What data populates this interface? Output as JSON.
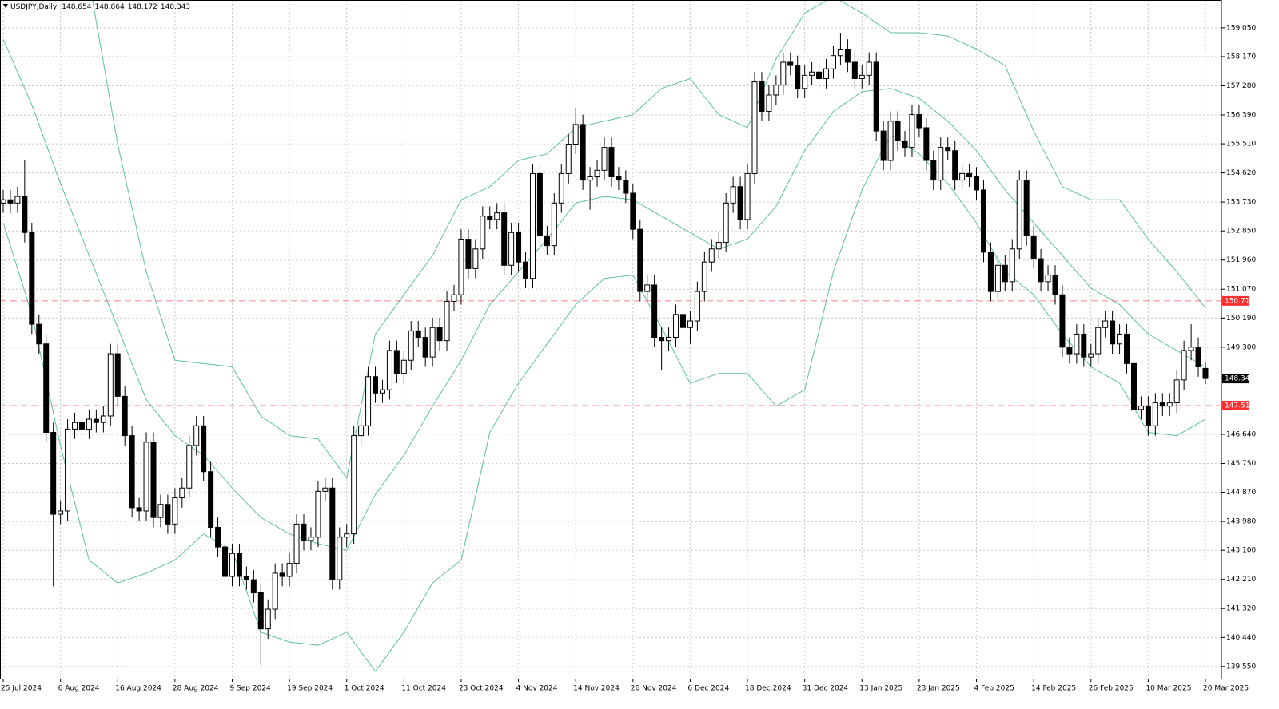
{
  "chart_data": {
    "type": "candlestick",
    "title": "USDJPY,Daily",
    "categories": [
      "25 Jul 2024",
      null,
      null,
      null,
      null,
      null,
      null,
      null,
      "6 Aug 2024",
      null,
      null,
      null,
      null,
      null,
      null,
      null,
      "16 Aug 2024",
      null,
      null,
      null,
      null,
      null,
      null,
      null,
      "28 Aug 2024",
      null,
      null,
      null,
      null,
      null,
      null,
      null,
      "9 Sep 2024",
      null,
      null,
      null,
      null,
      null,
      null,
      null,
      "19 Sep 2024",
      null,
      null,
      null,
      null,
      null,
      null,
      null,
      "1 Oct 2024",
      null,
      null,
      null,
      null,
      null,
      null,
      null,
      "11 Oct 2024",
      null,
      null,
      null,
      null,
      null,
      null,
      null,
      "23 Oct 2024",
      null,
      null,
      null,
      null,
      null,
      null,
      null,
      "4 Nov 2024",
      null,
      null,
      null,
      null,
      null,
      null,
      null,
      "14 Nov 2024",
      null,
      null,
      null,
      null,
      null,
      null,
      null,
      "26 Nov 2024",
      null,
      null,
      null,
      null,
      null,
      null,
      null,
      "6 Dec 2024",
      null,
      null,
      null,
      null,
      null,
      null,
      null,
      "18 Dec 2024",
      null,
      null,
      null,
      null,
      null,
      null,
      null,
      "31 Dec 2024",
      null,
      null,
      null,
      null,
      null,
      null,
      null,
      "13 Jan 2025",
      null,
      null,
      null,
      null,
      null,
      null,
      null,
      "23 Jan 2025",
      null,
      null,
      null,
      null,
      null,
      null,
      null,
      "4 Feb 2025",
      null,
      null,
      null,
      null,
      null,
      null,
      null,
      "14 Feb 2025",
      null,
      null,
      null,
      null,
      null,
      null,
      null,
      "26 Feb 2025",
      null,
      null,
      null,
      null,
      null,
      null,
      null,
      "10 Mar 2025",
      null,
      null,
      null,
      null,
      null,
      null,
      null,
      "20 Mar 2025"
    ],
    "open": [
      153.7,
      153.8,
      153.7,
      153.9,
      152.8,
      150.0,
      149.4,
      146.7,
      144.2,
      144.3,
      146.8,
      147.0,
      146.8,
      147.1,
      147.0,
      147.2,
      149.1,
      147.8,
      146.6,
      144.4,
      144.3,
      146.4,
      144.1,
      144.5,
      143.9,
      144.7,
      145.0,
      146.3,
      146.9,
      145.5,
      143.8,
      143.2,
      142.3,
      143.0,
      142.3,
      142.2,
      141.8,
      140.7,
      141.3,
      142.4,
      142.3,
      142.7,
      143.9,
      143.4,
      143.5,
      144.9,
      145.0,
      142.2,
      143.5,
      143.6,
      146.6,
      146.9,
      148.4,
      147.9,
      148.0,
      149.2,
      148.5,
      148.9,
      149.8,
      149.6,
      149.0,
      149.9,
      149.5,
      150.7,
      150.9,
      152.6,
      151.7,
      152.3,
      153.3,
      153.2,
      153.4,
      151.8,
      152.8,
      151.9,
      151.4,
      154.6,
      152.7,
      152.4,
      153.7,
      154.6,
      155.5,
      156.1,
      154.4,
      154.5,
      154.7,
      155.4,
      154.5,
      154.4,
      154.0,
      152.9,
      151.0,
      151.2,
      149.6,
      149.5,
      149.6,
      150.3,
      149.9,
      150.1,
      151.0,
      151.9,
      152.3,
      152.5,
      153.7,
      154.2,
      153.2,
      154.6,
      157.4,
      156.5,
      157.0,
      157.3,
      158.0,
      157.9,
      157.2,
      157.6,
      157.7,
      157.5,
      157.8,
      158.2,
      158.4,
      158.0,
      157.5,
      157.6,
      158.0,
      155.9,
      155.0,
      156.2,
      155.6,
      155.4,
      156.4,
      156.0,
      155.0,
      154.4,
      155.4,
      155.3,
      154.4,
      154.6,
      154.5,
      154.1,
      152.2,
      151.0,
      151.8,
      151.3,
      152.3,
      154.4,
      152.7,
      152.0,
      151.3,
      151.5,
      150.9,
      149.3,
      149.1,
      149.7,
      149.0,
      149.1,
      149.9,
      150.1,
      149.4,
      149.7,
      148.8,
      147.4,
      147.5,
      146.9,
      147.6,
      147.5,
      147.6,
      148.3,
      149.2,
      149.3,
      148.654
    ],
    "high": [
      154.1,
      154.1,
      154.2,
      155.0,
      153.1,
      150.3,
      149.7,
      147.0,
      144.6,
      147.1,
      147.3,
      147.3,
      147.4,
      147.4,
      147.5,
      149.4,
      149.4,
      148.1,
      146.9,
      144.7,
      146.7,
      146.7,
      144.8,
      144.8,
      145.0,
      145.3,
      146.6,
      147.2,
      147.2,
      145.8,
      144.1,
      143.5,
      143.3,
      143.3,
      142.6,
      142.5,
      142.1,
      141.6,
      142.7,
      142.7,
      143.0,
      144.2,
      144.2,
      143.8,
      145.2,
      145.3,
      145.3,
      143.8,
      143.9,
      146.9,
      147.2,
      148.7,
      148.7,
      148.3,
      149.5,
      149.5,
      149.2,
      150.1,
      150.1,
      149.9,
      150.2,
      150.2,
      151.0,
      151.2,
      152.9,
      152.9,
      152.6,
      153.6,
      153.6,
      153.7,
      153.7,
      153.1,
      153.1,
      152.2,
      154.9,
      154.9,
      153.0,
      154.0,
      154.9,
      155.8,
      156.6,
      156.4,
      154.8,
      155.0,
      155.7,
      155.7,
      154.8,
      154.7,
      154.3,
      153.2,
      151.5,
      151.5,
      149.9,
      149.9,
      150.6,
      150.6,
      150.4,
      151.3,
      152.2,
      152.6,
      152.8,
      154.0,
      154.5,
      154.5,
      154.9,
      157.7,
      157.7,
      157.3,
      157.6,
      158.3,
      158.3,
      158.2,
      157.9,
      158.0,
      158.0,
      158.1,
      158.5,
      158.9,
      158.7,
      158.3,
      157.9,
      158.3,
      158.3,
      156.2,
      156.5,
      156.5,
      155.9,
      156.7,
      156.7,
      156.3,
      155.3,
      155.7,
      155.7,
      155.6,
      154.9,
      154.9,
      154.8,
      154.4,
      152.5,
      152.1,
      152.1,
      152.6,
      154.7,
      154.7,
      153.0,
      152.3,
      151.8,
      151.8,
      151.2,
      149.6,
      150.0,
      150.0,
      149.4,
      150.2,
      150.4,
      150.4,
      150.0,
      150.0,
      149.1,
      147.8,
      147.8,
      147.9,
      147.9,
      147.9,
      148.6,
      149.5,
      150.0,
      149.6,
      148.864
    ],
    "low": [
      153.4,
      153.4,
      153.4,
      152.5,
      149.7,
      149.1,
      146.4,
      142.0,
      143.9,
      144.0,
      146.5,
      146.5,
      146.5,
      146.7,
      146.7,
      146.9,
      147.5,
      146.3,
      144.1,
      144.0,
      144.0,
      143.8,
      143.8,
      143.6,
      143.6,
      144.4,
      144.7,
      146.0,
      145.2,
      143.5,
      142.9,
      142.0,
      142.0,
      142.0,
      141.9,
      141.5,
      139.6,
      140.4,
      141.0,
      142.0,
      142.0,
      142.4,
      143.1,
      143.1,
      143.2,
      144.6,
      141.9,
      141.9,
      143.2,
      143.3,
      146.3,
      146.6,
      147.6,
      147.6,
      147.7,
      148.2,
      148.2,
      148.6,
      149.3,
      148.7,
      148.7,
      149.2,
      149.2,
      150.4,
      150.6,
      151.4,
      151.4,
      152.0,
      152.9,
      152.9,
      151.5,
      151.5,
      151.6,
      151.1,
      151.1,
      152.4,
      152.1,
      152.1,
      153.4,
      154.3,
      155.2,
      154.1,
      153.5,
      154.2,
      154.4,
      154.2,
      154.1,
      153.7,
      152.6,
      150.7,
      150.7,
      149.3,
      148.6,
      149.2,
      149.3,
      149.6,
      149.4,
      149.8,
      150.7,
      151.6,
      152.0,
      152.2,
      153.4,
      152.9,
      152.9,
      154.3,
      156.2,
      156.2,
      156.7,
      157.0,
      157.6,
      156.9,
      156.9,
      157.3,
      157.2,
      157.2,
      157.5,
      157.9,
      157.7,
      157.2,
      157.2,
      157.3,
      155.6,
      154.7,
      154.7,
      155.3,
      155.1,
      155.1,
      155.7,
      154.7,
      154.1,
      154.1,
      155.0,
      154.1,
      154.1,
      154.2,
      153.8,
      151.9,
      150.7,
      150.7,
      151.0,
      151.0,
      152.0,
      152.4,
      151.7,
      151.0,
      151.0,
      150.6,
      149.0,
      148.8,
      148.8,
      148.7,
      148.7,
      148.8,
      149.6,
      149.1,
      149.1,
      148.5,
      147.1,
      147.1,
      146.6,
      146.6,
      147.2,
      147.2,
      147.3,
      148.0,
      148.9,
      148.4,
      148.172
    ],
    "close": [
      153.8,
      153.7,
      153.9,
      152.8,
      150.0,
      149.4,
      146.7,
      144.2,
      144.3,
      146.8,
      147.0,
      146.8,
      147.1,
      147.0,
      147.2,
      149.1,
      147.8,
      146.6,
      144.4,
      144.3,
      146.4,
      144.1,
      144.5,
      143.9,
      144.7,
      145.0,
      146.3,
      146.9,
      145.5,
      143.8,
      143.2,
      142.3,
      143.0,
      142.3,
      142.2,
      141.8,
      140.7,
      141.3,
      142.4,
      142.3,
      142.7,
      143.9,
      143.4,
      143.5,
      144.9,
      145.0,
      142.2,
      143.5,
      143.6,
      146.6,
      146.9,
      148.4,
      147.9,
      148.0,
      149.2,
      148.5,
      148.9,
      149.8,
      149.6,
      149.0,
      149.9,
      149.5,
      150.7,
      150.9,
      152.6,
      151.7,
      152.3,
      153.3,
      153.2,
      153.4,
      151.8,
      152.8,
      151.9,
      151.4,
      154.6,
      152.7,
      152.4,
      153.7,
      154.6,
      155.5,
      156.1,
      154.4,
      154.5,
      154.7,
      155.4,
      154.5,
      154.4,
      154.0,
      152.9,
      151.0,
      151.2,
      149.6,
      149.5,
      149.6,
      150.3,
      149.9,
      150.1,
      151.0,
      151.9,
      152.3,
      152.5,
      153.7,
      154.2,
      153.2,
      154.6,
      157.4,
      156.5,
      157.0,
      157.3,
      158.0,
      157.9,
      157.2,
      157.6,
      157.7,
      157.5,
      157.8,
      158.2,
      158.4,
      158.0,
      157.5,
      157.6,
      158.0,
      155.9,
      155.0,
      156.2,
      155.6,
      155.4,
      156.4,
      156.0,
      155.0,
      154.4,
      155.4,
      155.3,
      154.4,
      154.6,
      154.5,
      154.1,
      152.2,
      151.0,
      151.8,
      151.3,
      152.3,
      154.4,
      152.7,
      152.0,
      151.3,
      151.5,
      150.9,
      149.3,
      149.1,
      149.7,
      149.0,
      149.1,
      149.9,
      150.1,
      149.4,
      149.7,
      148.8,
      147.4,
      147.5,
      146.9,
      147.6,
      147.5,
      147.6,
      148.3,
      149.2,
      149.3,
      148.7,
      148.343
    ],
    "bands": {
      "color": "#5fbfa0",
      "x": [
        0,
        4,
        8,
        12,
        16,
        20,
        24,
        28,
        32,
        36,
        40,
        44,
        48,
        52,
        56,
        60,
        64,
        68,
        72,
        76,
        80,
        84,
        88,
        92,
        96,
        100,
        104,
        108,
        112,
        116,
        120,
        124,
        128,
        132,
        136,
        140,
        144,
        148,
        152,
        156,
        160,
        164,
        168
      ],
      "upper": [
        163.0,
        162.0,
        161.0,
        160.5,
        155.5,
        151.6,
        148.9,
        148.8,
        148.7,
        147.2,
        146.6,
        146.5,
        145.3,
        149.7,
        150.9,
        152.1,
        153.8,
        154.2,
        155.0,
        155.2,
        156.0,
        156.2,
        156.4,
        157.2,
        157.5,
        156.4,
        156.0,
        158.1,
        159.5,
        160.0,
        159.5,
        158.9,
        158.9,
        158.8,
        158.4,
        157.9,
        155.9,
        154.2,
        153.8,
        153.8,
        152.6,
        151.6,
        150.5
      ],
      "middle": [
        158.7,
        156.7,
        154.3,
        152.1,
        149.9,
        147.7,
        146.6,
        146.0,
        145.0,
        144.1,
        143.6,
        143.3,
        143.1,
        144.8,
        146.0,
        147.5,
        148.9,
        150.6,
        151.6,
        152.6,
        153.7,
        153.9,
        153.8,
        153.3,
        152.8,
        152.3,
        152.6,
        153.6,
        155.3,
        156.5,
        157.1,
        157.2,
        156.9,
        156.2,
        155.3,
        154.1,
        153.1,
        152.1,
        151.1,
        150.6,
        149.7,
        149.2,
        148.7
      ],
      "lower": [
        153.1,
        150.3,
        146.3,
        142.8,
        142.1,
        142.4,
        142.8,
        143.6,
        143.1,
        140.6,
        140.3,
        140.2,
        140.6,
        139.4,
        140.6,
        142.1,
        142.8,
        146.7,
        148.2,
        149.4,
        150.6,
        151.4,
        151.5,
        149.9,
        148.2,
        148.5,
        148.5,
        147.5,
        148.0,
        151.6,
        154.1,
        155.8,
        155.2,
        154.3,
        153.1,
        151.6,
        150.9,
        149.7,
        148.7,
        148.2,
        146.7,
        146.6,
        147.1
      ]
    },
    "hlines": [
      {
        "value": 150.713,
        "label": "150.713"
      },
      {
        "value": 147.517,
        "label": "147.517"
      }
    ],
    "hline_color": "#ff3030",
    "ylim": [
      139.18,
      159.9
    ],
    "yticks": [
      {
        "value": 159.05,
        "label": "159.050"
      },
      {
        "value": 158.17,
        "label": "158.170"
      },
      {
        "value": 157.28,
        "label": "157.280"
      },
      {
        "value": 156.39,
        "label": "156.390"
      },
      {
        "value": 155.51,
        "label": "155.510"
      },
      {
        "value": 154.62,
        "label": "154.620"
      },
      {
        "value": 153.73,
        "label": "153.730"
      },
      {
        "value": 152.85,
        "label": "152.850"
      },
      {
        "value": 151.96,
        "label": "151.960"
      },
      {
        "value": 151.07,
        "label": "151.070"
      },
      {
        "value": 150.19,
        "label": "150.190"
      },
      {
        "value": 149.3,
        "label": "149.300"
      },
      {
        "value": 146.64,
        "label": "146.640"
      },
      {
        "value": 145.75,
        "label": "145.750"
      },
      {
        "value": 144.87,
        "label": "144.870"
      },
      {
        "value": 143.98,
        "label": "143.980"
      },
      {
        "value": 143.1,
        "label": "143.100"
      },
      {
        "value": 142.21,
        "label": "142.210"
      },
      {
        "value": 141.32,
        "label": "141.320"
      },
      {
        "value": 140.44,
        "label": "140.440"
      },
      {
        "value": 139.55,
        "label": "139.550"
      }
    ],
    "grid": true
  }
}
